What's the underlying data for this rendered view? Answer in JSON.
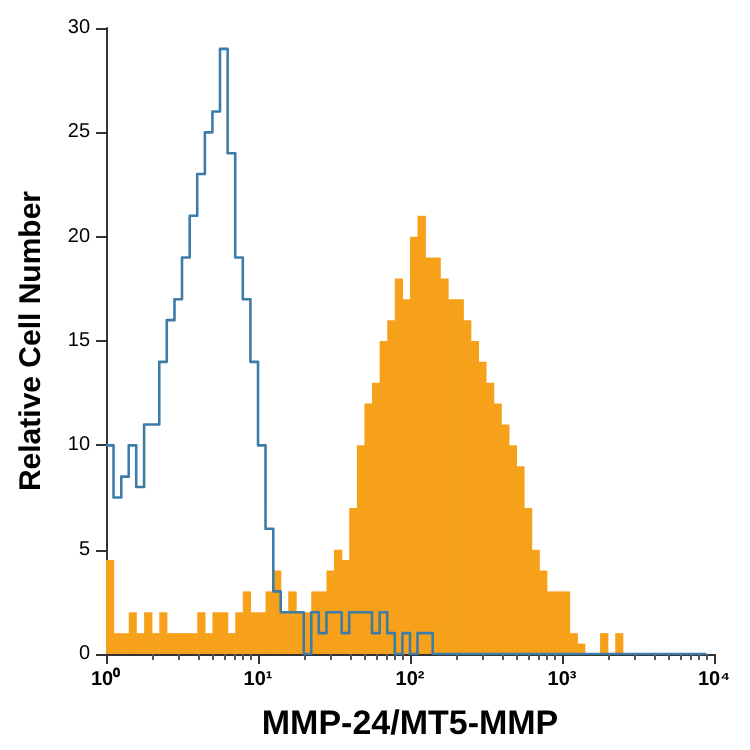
{
  "chart_data": {
    "type": "histogram",
    "xlabel": "MMP-24/MT5-MMP",
    "ylabel": "Relative Cell Number",
    "log": "x",
    "bins": [
      1,
      1.12,
      1.26,
      1.41,
      1.58,
      1.78,
      2,
      2.24,
      2.51,
      2.82,
      3.16,
      3.55,
      3.98,
      4.47,
      5.01,
      5.62,
      6.31,
      7.08,
      7.94,
      8.91,
      10,
      11.2,
      12.6,
      14.1,
      15.8,
      17.8,
      20,
      22.4,
      25.1,
      28.2,
      31.6,
      35.5,
      39.8,
      44.7,
      50.1,
      56.2,
      63.1,
      70.8,
      79.4,
      89.1,
      100,
      112,
      126,
      141,
      158,
      178,
      200,
      224,
      251,
      282,
      316,
      355,
      398,
      447,
      501,
      562,
      631,
      708,
      794,
      891,
      1000,
      1120,
      1260,
      1410,
      1580,
      1780,
      2000,
      2240,
      2510,
      2820,
      3160,
      3550,
      3980,
      4470,
      5010,
      5620,
      6310,
      7080,
      7940,
      8910,
      10000
    ],
    "series": [
      {
        "color": "#f7a11a",
        "values": [
          4.5,
          1,
          1,
          2,
          1,
          2,
          1,
          2,
          1,
          1,
          1,
          1,
          2,
          1,
          2,
          2,
          1,
          2,
          3,
          2,
          2,
          3,
          4,
          2,
          3,
          2,
          2,
          3,
          3,
          4,
          5,
          4.5,
          7,
          10,
          12,
          13,
          15,
          16,
          18,
          17,
          20,
          21,
          19,
          19,
          18,
          17,
          17,
          16,
          15,
          14,
          13,
          12,
          11,
          10,
          9,
          7,
          5,
          4,
          3,
          3,
          3,
          1,
          0.5,
          0,
          0,
          1,
          0,
          1,
          0,
          0,
          0,
          0,
          0,
          0,
          0,
          0,
          0,
          0,
          0,
          0
        ]
      },
      {
        "type": "step",
        "color": "#3d7ca8",
        "x": [
          1,
          1.12,
          1.26,
          1.41,
          1.58,
          1.78,
          2,
          2.24,
          2.51,
          2.82,
          3.16,
          3.55,
          3.98,
          4.47,
          5.01,
          5.62,
          6.31,
          7.08,
          7.94,
          8.91,
          10,
          11.2,
          12.6,
          14.1,
          15.8,
          17.8,
          20,
          22.4,
          25.1,
          28.2,
          31.6,
          35.5,
          39.8,
          44.7,
          50.1,
          56.2,
          63.1,
          70.8,
          79.4,
          89.1,
          100,
          112,
          126,
          141,
          158,
          178,
          200,
          224,
          251,
          282,
          316,
          355,
          398,
          447,
          501,
          562,
          631,
          708,
          794,
          891,
          1000,
          1120,
          1260,
          1410,
          1580,
          1780,
          2000,
          2240,
          2510,
          2820,
          3160,
          3550,
          3980,
          4470,
          5010,
          5620,
          6310,
          7080,
          7940,
          8910
        ],
        "values": [
          10,
          7.5,
          8.5,
          10,
          8,
          11,
          11,
          14,
          16,
          17,
          19,
          21,
          23,
          25,
          26,
          29,
          24,
          19,
          17,
          14,
          10,
          6,
          3,
          2,
          2,
          2,
          0,
          2,
          1,
          2,
          2,
          1,
          2,
          2,
          2,
          1,
          2,
          1,
          0,
          1,
          0,
          1,
          1,
          0,
          0,
          0,
          0,
          0,
          0,
          0,
          0,
          0,
          0,
          0,
          0,
          0,
          0,
          0,
          0,
          0,
          0,
          0,
          0,
          0,
          0,
          0,
          0,
          0,
          0,
          0,
          0,
          0,
          0,
          0,
          0,
          0,
          0,
          0,
          0,
          0
        ]
      }
    ],
    "xlim": [
      1,
      10000
    ],
    "xticks": [
      {
        "value": 1,
        "label": "10⁰"
      },
      {
        "value": 10,
        "label": "10¹"
      },
      {
        "value": 100,
        "label": "10²"
      },
      {
        "value": 1000,
        "label": "10³"
      },
      {
        "value": 10000,
        "label": "10⁴"
      }
    ],
    "ylim": [
      0,
      30
    ],
    "yticks": [
      0,
      5,
      10,
      15,
      20,
      25,
      30
    ],
    "grid": false
  }
}
